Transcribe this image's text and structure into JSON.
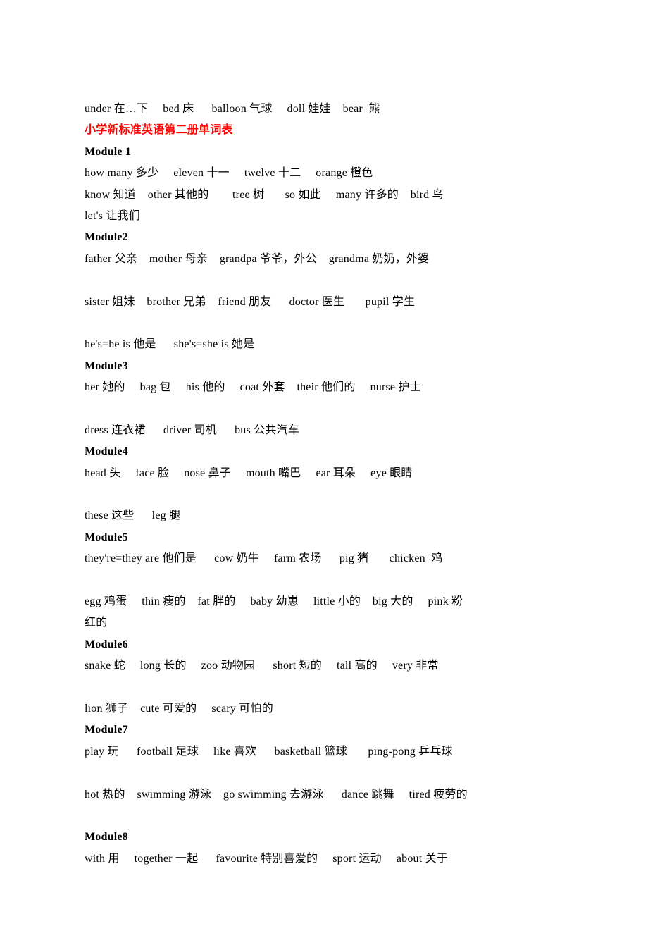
{
  "line_top": "under 在…下     bed 床      balloon 气球     doll 娃娃    bear  熊",
  "title": "小学新标准英语第二册单词表",
  "modules": [
    {
      "header": "Module 1",
      "lines": [
        "how many 多少     eleven 十一     twelve 十二     orange 橙色",
        "know 知道    other 其他的        tree 树       so 如此     many 许多的    bird 鸟",
        "let's 让我们"
      ]
    },
    {
      "header": "Module2",
      "lines": [
        "father 父亲    mother 母亲    grandpa 爷爷，外公    grandma 奶奶，外婆",
        "",
        "sister 姐妹    brother 兄弟    friend 朋友      doctor 医生       pupil 学生",
        "",
        "he's=he is 他是      she's=she is 她是"
      ]
    },
    {
      "header": "Module3",
      "lines": [
        "her 她的     bag 包     his 他的     coat 外套    their 他们的     nurse 护士",
        "",
        "dress 连衣裙      driver 司机      bus 公共汽车"
      ]
    },
    {
      "header": "Module4",
      "lines": [
        "head 头     face 脸     nose 鼻子     mouth 嘴巴     ear 耳朵     eye 眼睛",
        "",
        "these 这些      leg 腿"
      ]
    },
    {
      "header": "Module5",
      "lines": [
        "they're=they are 他们是      cow 奶牛     farm 农场      pig 猪       chicken  鸡",
        "",
        "egg 鸡蛋     thin 瘦的    fat 胖的     baby 幼崽     little 小的    big 大的     pink 粉",
        "红的"
      ]
    },
    {
      "header": "Module6",
      "lines": [
        "snake 蛇     long 长的     zoo 动物园      short 短的     tall 高的     very 非常",
        "",
        "lion 狮子    cute 可爱的     scary 可怕的"
      ]
    },
    {
      "header": "Module7",
      "lines": [
        "play 玩      football 足球     like 喜欢      basketball 篮球       ping-pong 乒乓球",
        "",
        "hot 热的    swimming 游泳    go swimming 去游泳      dance 跳舞     tired 疲劳的",
        ""
      ]
    },
    {
      "header": "Module8",
      "lines": [
        "with 用     together 一起      favourite 特别喜爱的     sport 运动     about 关于"
      ]
    }
  ]
}
